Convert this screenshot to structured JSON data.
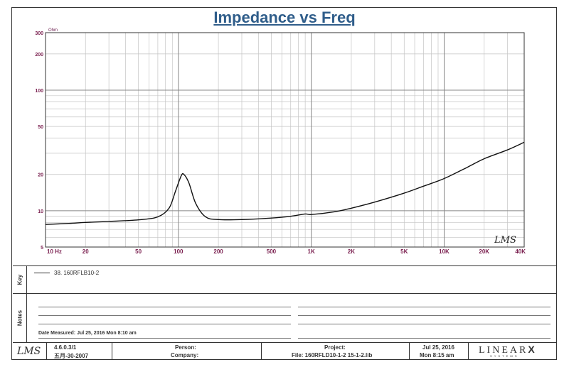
{
  "chart_data": {
    "type": "line",
    "title": "Impedance vs Freq",
    "ylabel": "Ohm",
    "xscale": "log",
    "yscale": "log",
    "xlim": [
      10,
      40000
    ],
    "ylim": [
      5,
      300
    ],
    "grid": true,
    "x_ticks": [
      {
        "v": 10,
        "label": "10 Hz"
      },
      {
        "v": 20,
        "label": "20"
      },
      {
        "v": 50,
        "label": "50"
      },
      {
        "v": 100,
        "label": "100"
      },
      {
        "v": 200,
        "label": "200"
      },
      {
        "v": 500,
        "label": "500"
      },
      {
        "v": 1000,
        "label": "1K"
      },
      {
        "v": 2000,
        "label": "2K"
      },
      {
        "v": 5000,
        "label": "5K"
      },
      {
        "v": 10000,
        "label": "10K"
      },
      {
        "v": 20000,
        "label": "20K"
      },
      {
        "v": 40000,
        "label": "40K"
      }
    ],
    "y_ticks": [
      {
        "v": 5,
        "label": "5"
      },
      {
        "v": 10,
        "label": "10"
      },
      {
        "v": 20,
        "label": "20"
      },
      {
        "v": 50,
        "label": "50"
      },
      {
        "v": 100,
        "label": "100"
      },
      {
        "v": 200,
        "label": "200"
      },
      {
        "v": 300,
        "label": "300"
      }
    ],
    "series": [
      {
        "name": "38. 160RFLB10-2",
        "color": "#111111",
        "x": [
          10,
          15,
          20,
          30,
          50,
          70,
          85,
          95,
          105,
          110,
          120,
          135,
          160,
          200,
          300,
          500,
          700,
          900,
          1000,
          1500,
          2000,
          3000,
          5000,
          7000,
          10000,
          15000,
          20000,
          30000,
          40000
        ],
        "y": [
          7.7,
          7.85,
          8.0,
          8.15,
          8.4,
          8.9,
          10.5,
          14.5,
          19.5,
          20.0,
          17.0,
          11.5,
          8.9,
          8.45,
          8.45,
          8.7,
          9.0,
          9.4,
          9.3,
          9.8,
          10.5,
          11.8,
          14.0,
          16.0,
          18.5,
          23.0,
          27.0,
          32.0,
          37.0
        ]
      }
    ],
    "watermark": "LMS"
  },
  "panels": {
    "legend_side_label": "Key",
    "notes_side_label": "Notes",
    "legend_entry": "38. 160RFLB10-2",
    "date_measured": "Date Measured: Jul 25, 2016  Mon  8:10 am"
  },
  "footer": {
    "logo": "LMS",
    "version": "4.6.0.3/1",
    "version_date": "五月-30-2007",
    "person_label": "Person:",
    "company_label": "Company:",
    "project_label": "Project:",
    "file_label": "File: 160RFLD10-1-2 15-1-2.lib",
    "date_line1": "Jul 25, 2016",
    "date_line2": "Mon  8:15 am",
    "brand": "LINEAR",
    "brand_x": "X",
    "brand_sub": "S Y S T E M S"
  }
}
